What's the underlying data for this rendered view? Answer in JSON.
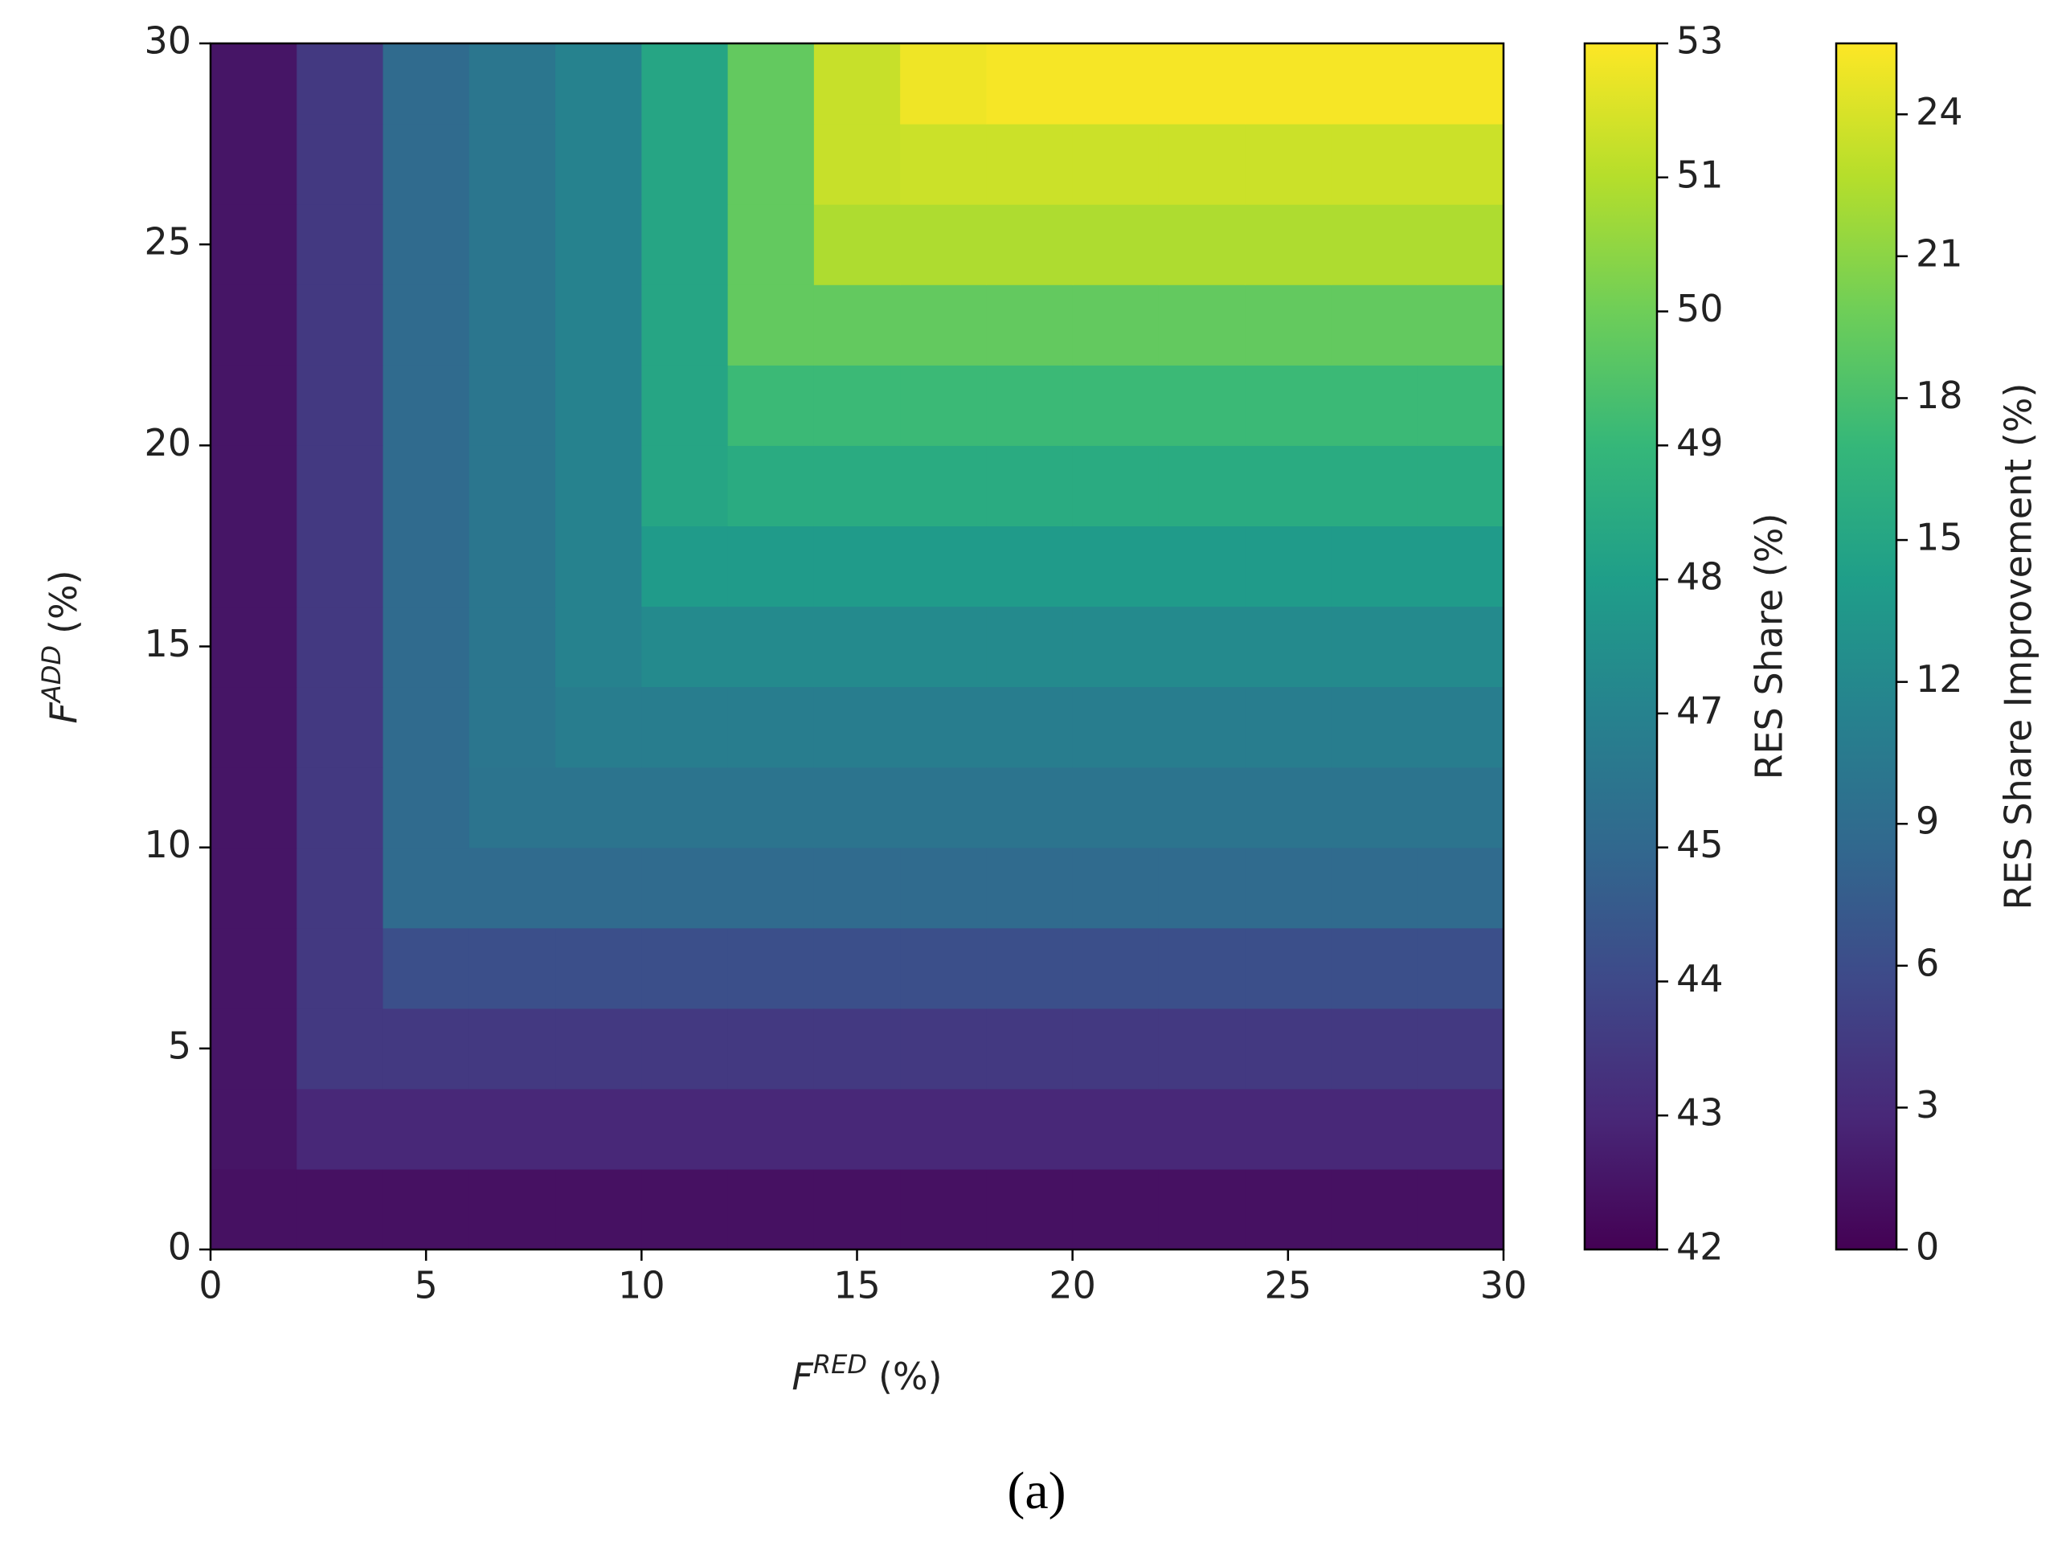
{
  "chart_data": {
    "type": "heatmap",
    "colormap": "viridis",
    "x": [
      1,
      3,
      5,
      7,
      9,
      11,
      13,
      15,
      17,
      19,
      21,
      23,
      25,
      27,
      29
    ],
    "y": [
      1,
      3,
      5,
      7,
      9,
      11,
      13,
      15,
      17,
      19,
      21,
      23,
      25,
      27,
      29
    ],
    "z": [
      [
        42.4,
        42.4,
        42.4,
        42.4,
        42.4,
        42.4,
        42.4,
        42.4,
        42.4,
        42.4,
        42.4,
        42.4,
        42.4,
        42.4,
        42.4
      ],
      [
        42.5,
        43.0,
        43.0,
        43.0,
        43.0,
        43.0,
        43.0,
        43.0,
        43.0,
        43.0,
        43.0,
        43.0,
        43.0,
        43.0,
        43.0
      ],
      [
        42.5,
        43.5,
        43.5,
        43.5,
        43.5,
        43.5,
        43.5,
        43.5,
        43.5,
        43.5,
        43.5,
        43.5,
        43.5,
        43.5,
        43.5
      ],
      [
        42.5,
        43.5,
        44.2,
        44.2,
        44.2,
        44.2,
        44.2,
        44.2,
        44.2,
        44.2,
        44.2,
        44.2,
        44.2,
        44.2,
        44.2
      ],
      [
        42.5,
        43.5,
        45.2,
        45.2,
        45.2,
        45.2,
        45.2,
        45.2,
        45.2,
        45.2,
        45.2,
        45.2,
        45.2,
        45.2,
        45.2
      ],
      [
        42.5,
        43.5,
        45.2,
        45.9,
        45.9,
        45.9,
        45.9,
        45.9,
        45.9,
        45.9,
        45.9,
        45.9,
        45.9,
        45.9,
        45.9
      ],
      [
        42.5,
        43.5,
        45.2,
        46.1,
        46.6,
        46.6,
        46.6,
        46.6,
        46.6,
        46.6,
        46.6,
        46.6,
        46.6,
        46.6,
        46.6
      ],
      [
        42.5,
        43.5,
        45.2,
        46.1,
        47.0,
        47.3,
        47.3,
        47.3,
        47.3,
        47.3,
        47.3,
        47.3,
        47.3,
        47.3,
        47.3
      ],
      [
        42.5,
        43.5,
        45.2,
        46.1,
        47.0,
        47.9,
        47.9,
        47.9,
        47.9,
        47.9,
        47.9,
        47.9,
        47.9,
        47.9,
        47.9
      ],
      [
        42.5,
        43.5,
        45.2,
        46.1,
        47.0,
        48.3,
        48.5,
        48.5,
        48.5,
        48.5,
        48.5,
        48.5,
        48.5,
        48.5,
        48.5
      ],
      [
        42.5,
        43.5,
        45.2,
        46.1,
        47.0,
        48.3,
        49.1,
        49.1,
        49.1,
        49.1,
        49.1,
        49.1,
        49.1,
        49.1,
        49.1
      ],
      [
        42.5,
        43.5,
        45.2,
        46.1,
        47.0,
        48.3,
        49.8,
        49.8,
        49.8,
        49.8,
        49.8,
        49.8,
        49.8,
        49.8,
        49.8
      ],
      [
        42.5,
        43.5,
        45.2,
        46.1,
        47.0,
        48.3,
        49.8,
        50.9,
        50.9,
        50.9,
        50.9,
        50.9,
        50.9,
        50.9,
        50.9
      ],
      [
        42.5,
        43.5,
        45.2,
        46.1,
        47.0,
        48.3,
        49.8,
        51.5,
        51.6,
        51.6,
        51.6,
        51.6,
        51.6,
        51.6,
        51.6
      ],
      [
        42.5,
        43.5,
        45.2,
        46.1,
        47.0,
        48.3,
        49.8,
        51.5,
        52.6,
        52.8,
        52.8,
        52.8,
        52.8,
        52.8,
        52.8
      ]
    ],
    "xlim": [
      0,
      30
    ],
    "xticks": [
      0,
      5,
      10,
      15,
      20,
      25,
      30
    ],
    "ylim": [
      0,
      30
    ],
    "yticks": [
      0,
      5,
      10,
      15,
      20,
      25,
      30
    ],
    "xlabel": {
      "base": "F",
      "superscript": "RED",
      "suffix": "(%)"
    },
    "ylabel": {
      "base": "F",
      "superscript": "ADD",
      "suffix": "(%)"
    },
    "colorbars": [
      {
        "label": "RES Share (%)",
        "lim": [
          42,
          53
        ],
        "ticks": [
          42,
          43,
          44,
          45,
          47,
          48,
          49,
          50,
          51,
          53
        ]
      },
      {
        "label": "RES Share Improvement (%)",
        "lim": [
          0,
          25.5
        ],
        "ticks": [
          0,
          3,
          6,
          9,
          12,
          15,
          18,
          21,
          24
        ]
      }
    ],
    "caption": "(a)"
  }
}
